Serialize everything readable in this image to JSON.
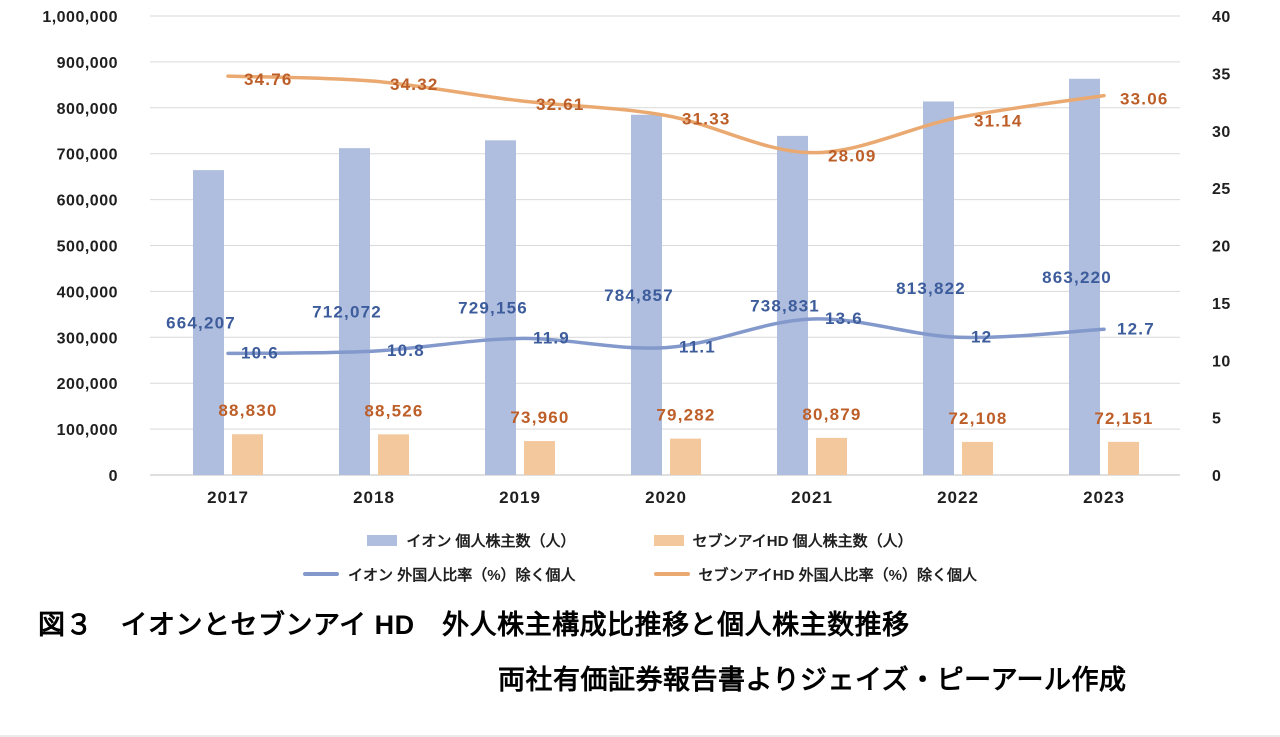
{
  "figure": {
    "caption_line1": "図３　イオンとセブンアイ HD　外人株主構成比推移と個人株主数推移",
    "caption_line2": "両社有価証券報告書よりジェイズ・ピーアール作成"
  },
  "chart_data": {
    "type": "combo-bar-line",
    "categories": [
      "2017",
      "2018",
      "2019",
      "2020",
      "2021",
      "2022",
      "2023"
    ],
    "left_axis": {
      "min": 0,
      "max": 1000000,
      "step": 100000,
      "tick_labels": [
        "0",
        "100,000",
        "200,000",
        "300,000",
        "400,000",
        "500,000",
        "600,000",
        "700,000",
        "800,000",
        "900,000",
        "1,000,000"
      ]
    },
    "right_axis": {
      "min": 0,
      "max": 40,
      "step": 5,
      "tick_labels": [
        "0",
        "5",
        "10",
        "15",
        "20",
        "25",
        "30",
        "35",
        "40"
      ]
    },
    "grid": true,
    "legend_position": "bottom",
    "series": [
      {
        "name": "イオン 個人株主数（人）",
        "type": "bar",
        "axis": "left",
        "color": "#afbede",
        "label_color": "#3d5c9b",
        "values": [
          664207,
          712072,
          729156,
          784857,
          738831,
          813822,
          863220
        ],
        "value_labels": [
          "664,207",
          "712,072",
          "729,156",
          "784,857",
          "738,831",
          "813,822",
          "863,220"
        ]
      },
      {
        "name": "セブンアイHD 個人株主数（人）",
        "type": "bar",
        "axis": "left",
        "color": "#f3c89d",
        "label_color": "#bd5e28",
        "values": [
          88830,
          88526,
          73960,
          79282,
          80879,
          72108,
          72151
        ],
        "value_labels": [
          "88,830",
          "88,526",
          "73,960",
          "79,282",
          "80,879",
          "72,108",
          "72,151"
        ]
      },
      {
        "name": "イオン 外国人比率（%）除く個人",
        "type": "line",
        "axis": "right",
        "color": "#8399cc",
        "label_color": "#3d5c9b",
        "values": [
          10.6,
          10.8,
          11.9,
          11.1,
          13.6,
          12,
          12.7
        ],
        "value_labels": [
          "10.6",
          "10.8",
          "11.9",
          "11.1",
          "13.6",
          "12",
          "12.7"
        ]
      },
      {
        "name": "セブンアイHD 外国人比率（%）除く個人",
        "type": "line",
        "axis": "right",
        "color": "#eaa971",
        "label_color": "#bd5e28",
        "values": [
          34.76,
          34.32,
          32.61,
          31.33,
          28.09,
          31.14,
          33.06
        ],
        "value_labels": [
          "34.76",
          "34.32",
          "32.61",
          "31.33",
          "28.09",
          "31.14",
          "33.06"
        ]
      }
    ]
  }
}
